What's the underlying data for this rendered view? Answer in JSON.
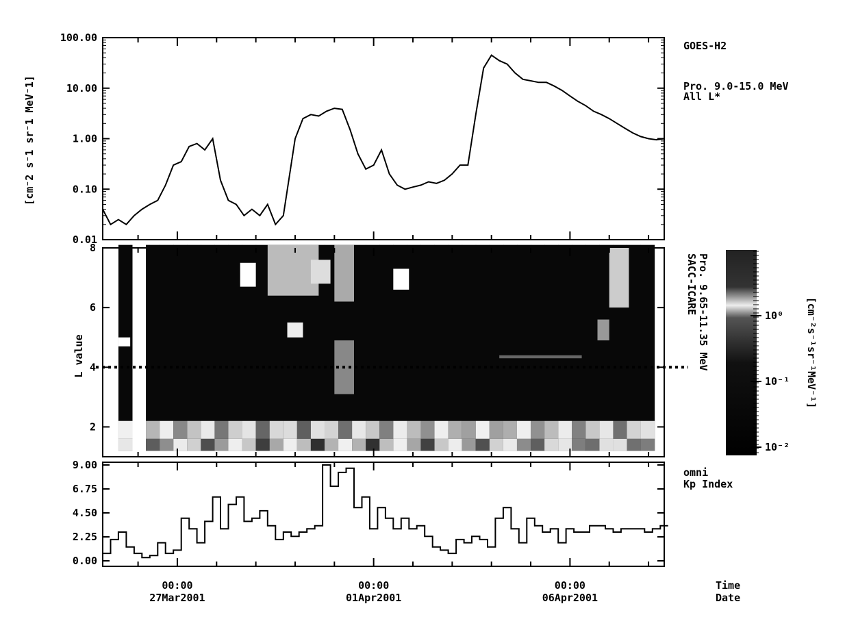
{
  "chart_data": [
    {
      "type": "line",
      "panel": "top",
      "ylabel": "[cm^-2 s^-1 sr^-1 MeV^-1]",
      "ylabel_text": "[cm⁻2 s⁻1 sr⁻1 MeV⁻1]",
      "right_labels": [
        "GOES-H2",
        "Pro. 9.0-15.0 MeV",
        "All L*"
      ],
      "yscale": "log",
      "ylim": [
        0.01,
        100
      ],
      "ytick_labels": [
        "100.00",
        "10.00",
        "1.00",
        "0.10",
        "0.01"
      ],
      "ytick_values": [
        100,
        10,
        1,
        0.1,
        0.01
      ],
      "xlim_days": [
        -1.9,
        12.4
      ],
      "series": [
        {
          "x": [
            -1.9,
            -1.7,
            -1.5,
            -1.3,
            -1.1,
            -0.9,
            -0.7,
            -0.5,
            -0.3,
            -0.1,
            0.1,
            0.3,
            0.5,
            0.7,
            0.9,
            1.1,
            1.3,
            1.5,
            1.7,
            1.9,
            2.1,
            2.3,
            2.5,
            2.7,
            3.0,
            3.2,
            3.4,
            3.6,
            3.8,
            4.0,
            4.2,
            4.4,
            4.6,
            4.8,
            5.0,
            5.2,
            5.4,
            5.6,
            5.8,
            6.0,
            6.2,
            6.4,
            6.6,
            6.8,
            7.0,
            7.2,
            7.4,
            7.6,
            7.8,
            8.0,
            8.2,
            8.4,
            8.6,
            8.8,
            9.0,
            9.2,
            9.4,
            9.6,
            9.8,
            10.0,
            10.2,
            10.4,
            10.6,
            10.8,
            11.0,
            11.2,
            11.4,
            11.6,
            11.8,
            12.0,
            12.2,
            12.4
          ],
          "y": [
            0.04,
            0.02,
            0.025,
            0.02,
            0.03,
            0.04,
            0.05,
            0.06,
            0.12,
            0.3,
            0.35,
            0.7,
            0.8,
            0.6,
            1.0,
            0.15,
            0.06,
            0.05,
            0.03,
            0.04,
            0.03,
            0.05,
            0.02,
            0.03,
            1.0,
            2.5,
            3.0,
            2.8,
            3.5,
            4.0,
            3.8,
            1.5,
            0.5,
            0.25,
            0.3,
            0.6,
            0.2,
            0.12,
            0.1,
            0.11,
            0.12,
            0.14,
            0.13,
            0.15,
            0.2,
            0.3,
            0.3,
            3.0,
            25,
            45,
            35,
            30,
            20,
            15,
            14,
            13,
            13,
            11,
            9,
            7,
            5.5,
            4.5,
            3.5,
            3.0,
            2.5,
            2.0,
            1.6,
            1.3,
            1.1,
            1.0,
            0.95,
            1.0
          ]
        }
      ]
    },
    {
      "type": "heatmap",
      "panel": "middle",
      "ylabel": "L value",
      "right_labels": [
        "SACC-ICARE",
        "Pro. 9.65-11.35 MeV"
      ],
      "ylim": [
        1,
        8
      ],
      "ytick_labels": [
        "8",
        "6",
        "4",
        "2"
      ],
      "ytick_values": [
        8,
        6,
        4,
        2
      ],
      "reference_line_L": 4,
      "colorbar": {
        "scale": "log",
        "range": [
          0.01,
          10
        ],
        "tick_labels": [
          "10⁰",
          "10⁻¹",
          "10⁻²"
        ],
        "tick_values": [
          1,
          0.1,
          0.01
        ],
        "label": "[cm⁻²s⁻¹sr⁻¹MeV⁻¹]"
      }
    },
    {
      "type": "line",
      "panel": "bottom",
      "right_labels": [
        "omni",
        "Kp Index"
      ],
      "ylim": [
        0,
        9
      ],
      "ytick_labels": [
        "9.00",
        "6.75",
        "4.50",
        "2.25",
        "0.00"
      ],
      "ytick_values": [
        9,
        6.75,
        4.5,
        2.25,
        0
      ],
      "series": [
        {
          "x": [
            -1.9,
            -1.7,
            -1.5,
            -1.3,
            -1.1,
            -0.9,
            -0.7,
            -0.5,
            -0.3,
            -0.1,
            0.1,
            0.3,
            0.5,
            0.7,
            0.9,
            1.1,
            1.3,
            1.5,
            1.7,
            1.9,
            2.1,
            2.3,
            2.5,
            2.7,
            2.9,
            3.1,
            3.3,
            3.5,
            3.7,
            3.9,
            4.1,
            4.3,
            4.5,
            4.7,
            4.9,
            5.1,
            5.3,
            5.5,
            5.7,
            5.9,
            6.1,
            6.3,
            6.5,
            6.7,
            6.9,
            7.1,
            7.3,
            7.5,
            7.7,
            7.9,
            8.1,
            8.3,
            8.5,
            8.7,
            8.9,
            9.1,
            9.3,
            9.5,
            9.7,
            9.9,
            10.1,
            10.3,
            10.5,
            10.7,
            10.9,
            11.1,
            11.3,
            11.5,
            11.7,
            11.9,
            12.1,
            12.3
          ],
          "y": [
            0.7,
            2.0,
            2.7,
            1.3,
            0.7,
            0.3,
            0.5,
            1.7,
            0.7,
            1.0,
            4.0,
            3.0,
            1.7,
            3.7,
            6.0,
            3.0,
            5.3,
            6.0,
            3.7,
            4.0,
            4.7,
            3.3,
            2.0,
            2.7,
            2.3,
            2.7,
            3.0,
            3.3,
            9.0,
            7.0,
            8.3,
            8.7,
            5.0,
            6.0,
            3.0,
            5.0,
            4.0,
            3.0,
            4.0,
            3.0,
            3.3,
            2.3,
            1.3,
            1.0,
            0.7,
            2.0,
            1.7,
            2.3,
            2.0,
            1.3,
            4.0,
            5.0,
            3.0,
            1.7,
            4.0,
            3.3,
            2.7,
            3.0,
            1.7,
            3.0,
            2.7,
            2.7,
            3.3,
            3.3,
            3.0,
            2.7,
            3.0,
            3.0,
            3.0,
            2.7,
            3.0,
            3.3
          ]
        }
      ]
    }
  ],
  "x_axis": {
    "ticks": [
      {
        "day": 0,
        "time": "00:00",
        "date": "27Mar2001"
      },
      {
        "day": 5,
        "time": "00:00",
        "date": "01Apr2001"
      },
      {
        "day": 10,
        "time": "00:00",
        "date": "06Apr2001"
      }
    ],
    "time_label": "Time",
    "date_label": "Date"
  }
}
